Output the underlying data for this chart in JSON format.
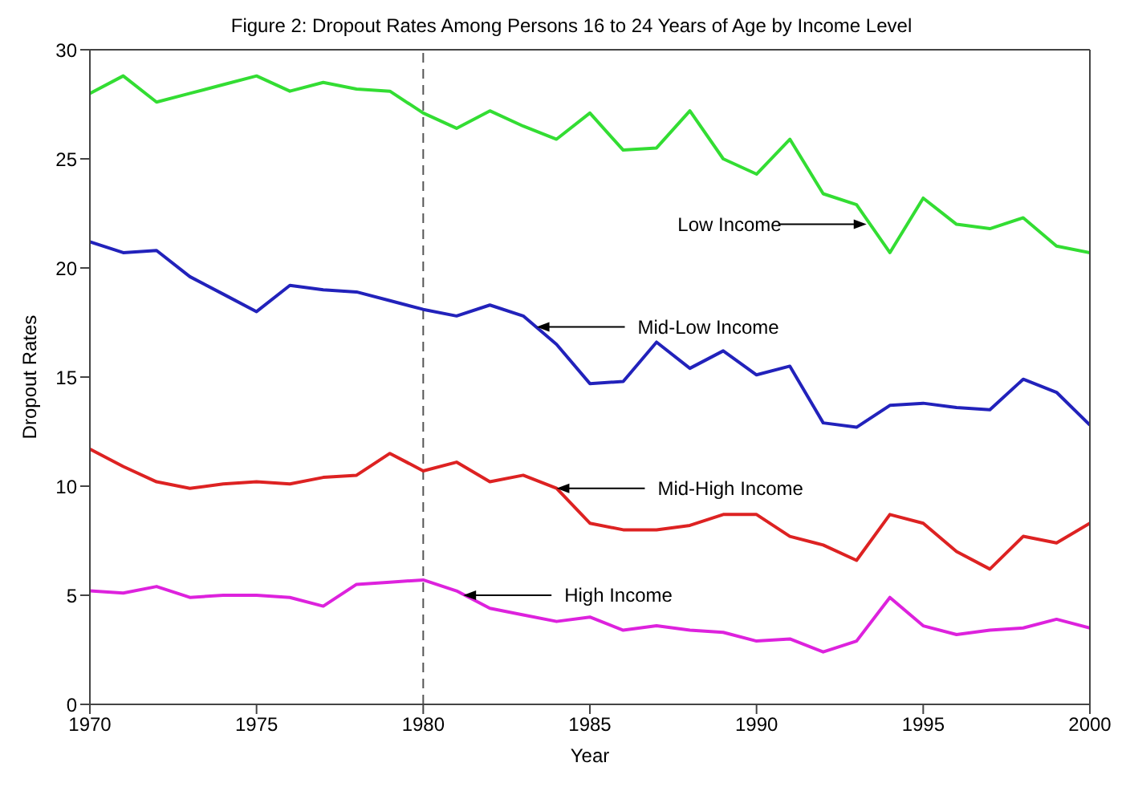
{
  "chart_data": {
    "type": "line",
    "title": "Figure 2: Dropout Rates Among Persons 16 to 24 Years of Age by Income Level",
    "xlabel": "Year",
    "ylabel": "Dropout Rates",
    "x": [
      1970,
      1971,
      1972,
      1973,
      1974,
      1975,
      1976,
      1977,
      1978,
      1979,
      1980,
      1981,
      1982,
      1983,
      1984,
      1985,
      1986,
      1987,
      1988,
      1989,
      1990,
      1991,
      1992,
      1993,
      1994,
      1995,
      1996,
      1997,
      1998,
      1999,
      2000
    ],
    "series": [
      {
        "color": "#33dd33",
        "values": [
          28.0,
          28.8,
          27.6,
          28.0,
          28.4,
          28.8,
          28.1,
          28.5,
          28.2,
          28.1,
          27.1,
          26.4,
          27.2,
          26.5,
          25.9,
          27.1,
          25.4,
          25.5,
          27.2,
          25.0,
          24.3,
          25.9,
          23.4,
          22.9,
          20.7,
          23.2,
          22.0,
          21.8,
          22.3,
          21.0,
          20.7
        ]
      },
      {
        "color": "#2222bb",
        "values": [
          21.2,
          20.7,
          20.8,
          19.6,
          18.8,
          18.0,
          19.2,
          19.0,
          18.9,
          18.5,
          18.1,
          17.8,
          18.3,
          17.8,
          16.5,
          14.7,
          14.8,
          16.6,
          15.4,
          16.2,
          15.1,
          15.5,
          12.9,
          12.7,
          13.7,
          13.8,
          13.6,
          13.5,
          14.9,
          14.3,
          12.8
        ]
      },
      {
        "color": "#dd2222",
        "values": [
          11.7,
          10.9,
          10.2,
          9.9,
          10.1,
          10.2,
          10.1,
          10.4,
          10.5,
          11.5,
          10.7,
          11.1,
          10.2,
          10.5,
          9.9,
          8.3,
          8.0,
          8.0,
          8.2,
          8.7,
          8.7,
          7.7,
          7.3,
          6.6,
          8.7,
          8.3,
          7.0,
          6.2,
          7.7,
          7.4,
          8.3
        ]
      },
      {
        "color": "#dd22dd",
        "values": [
          5.2,
          5.1,
          5.4,
          4.9,
          5.0,
          5.0,
          4.9,
          4.5,
          5.5,
          5.6,
          5.7,
          5.2,
          4.4,
          4.1,
          3.8,
          4.0,
          3.4,
          3.6,
          3.4,
          3.3,
          2.9,
          3.0,
          2.4,
          2.9,
          4.9,
          3.6,
          3.2,
          3.4,
          3.5,
          3.9,
          3.5
        ]
      }
    ],
    "annotations": [
      {
        "text": "Low Income",
        "x": 1993.3,
        "y": 22.0
      },
      {
        "text": "Mid-Low Income",
        "x": 1983.4,
        "y": 17.3
      },
      {
        "text": "Mid-High Income",
        "x": 1984,
        "y": 9.9
      },
      {
        "text": "High Income",
        "x": 1981.2,
        "y": 5.0
      }
    ],
    "ref_lines": [
      {
        "axis": "x",
        "value": 1980,
        "color": "#555555",
        "line_style": "dashed"
      }
    ],
    "xlim": [
      1970,
      2000
    ],
    "xticks": [
      1970,
      1975,
      1980,
      1985,
      1990,
      1995,
      2000
    ],
    "ylim": [
      0,
      30
    ],
    "yticks": [
      0,
      5,
      10,
      15,
      20,
      25,
      30
    ],
    "grid": false,
    "legend": false,
    "marker": "none",
    "line_style": "solid"
  }
}
